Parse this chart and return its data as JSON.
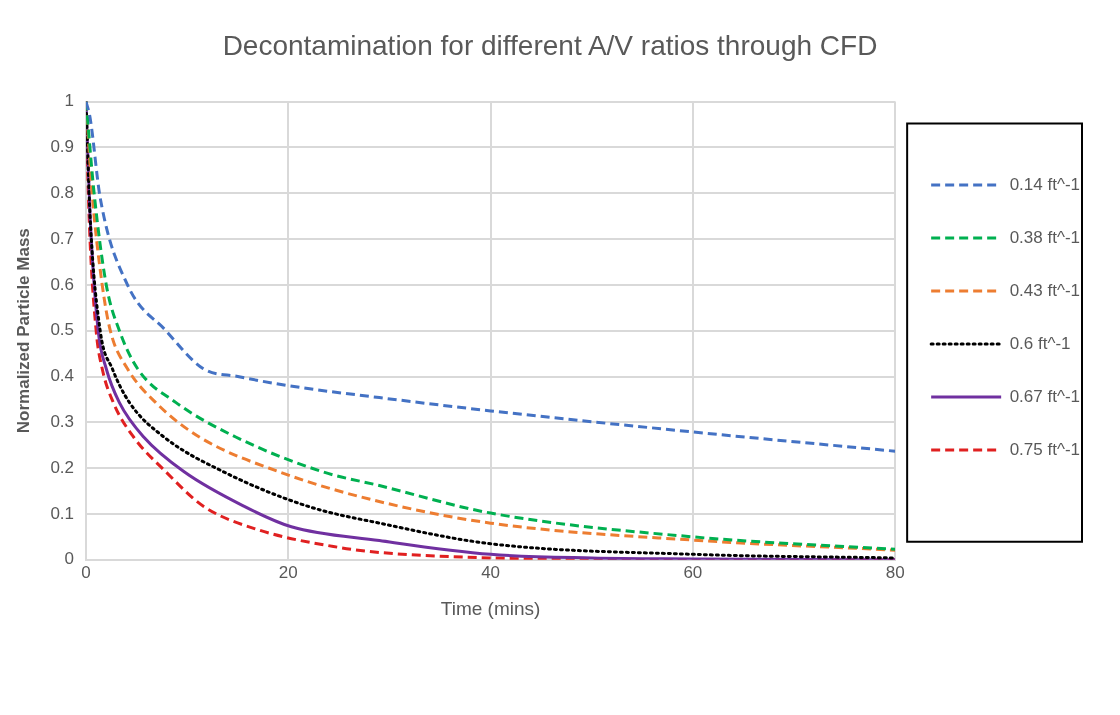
{
  "chart_data": {
    "type": "line",
    "title": "Decontamination for different A/V ratios through CFD",
    "xlabel": "Time (mins)",
    "ylabel": "Normalized Particle Mass",
    "xlim": [
      0,
      80
    ],
    "xticks": [
      0,
      20,
      40,
      60,
      80
    ],
    "ylim": [
      0,
      1
    ],
    "yticks": [
      0,
      0.1,
      0.2,
      0.3,
      0.4,
      0.5,
      0.6,
      0.7,
      0.8,
      0.9,
      1
    ],
    "grid": true,
    "legend": "right",
    "marker": "none",
    "series": [
      {
        "name": "0.14 ft^-1",
        "color": "#4472c4",
        "line_style": "dashed",
        "x": [
          0,
          0.4,
          1.4,
          4.1,
          7.9,
          11.6,
          15,
          20,
          29,
          40,
          60,
          80
        ],
        "values": [
          1,
          0.965,
          0.79,
          0.6,
          0.5,
          0.417,
          0.4,
          0.38,
          0.354,
          0.325,
          0.279,
          0.237
        ]
      },
      {
        "name": "0.38 ft^-1",
        "color": "#00b050",
        "line_style": "dashed",
        "x": [
          0,
          0.8,
          2,
          3.3,
          5.1,
          8.9,
          14.8,
          23.4,
          29,
          40,
          60,
          80
        ],
        "values": [
          1,
          0.8,
          0.6,
          0.5,
          0.417,
          0.343,
          0.268,
          0.192,
          0.162,
          0.102,
          0.05,
          0.023
        ]
      },
      {
        "name": "0.43 ft^-1",
        "color": "#ed7d31",
        "line_style": "dashed",
        "x": [
          0,
          0.6,
          1.6,
          2.4,
          4.1,
          6.9,
          11.2,
          19.1,
          28.1,
          40,
          60,
          80
        ],
        "values": [
          1,
          0.8,
          0.6,
          0.5,
          0.417,
          0.343,
          0.268,
          0.192,
          0.132,
          0.08,
          0.043,
          0.021
        ]
      },
      {
        "name": "0.6 ft^-1",
        "color": "#000000",
        "line_style": "dotted",
        "x": [
          0,
          0.4,
          1.4,
          2.6,
          4.3,
          7.7,
          13.6,
          21.9,
          29,
          40,
          60,
          80
        ],
        "values": [
          1,
          0.75,
          0.5,
          0.417,
          0.343,
          0.268,
          0.192,
          0.117,
          0.08,
          0.035,
          0.012,
          0.004
        ]
      },
      {
        "name": "0.67 ft^-1",
        "color": "#7030a0",
        "line_style": "solid",
        "x": [
          0,
          0.4,
          1.2,
          2,
          3.3,
          5.7,
          9.7,
          15.6,
          20.3,
          29,
          40,
          50,
          60,
          80
        ],
        "values": [
          1,
          0.75,
          0.5,
          0.417,
          0.343,
          0.268,
          0.192,
          0.117,
          0.072,
          0.042,
          0.012,
          0.004,
          0.002,
          0
        ]
      },
      {
        "name": "0.75 ft^-1",
        "color": "#e02020",
        "line_style": "dashed",
        "x": [
          0,
          0.3,
          1,
          1.6,
          2.7,
          4.7,
          7.9,
          11.6,
          17.1,
          25,
          29,
          40,
          50,
          80
        ],
        "values": [
          1,
          0.75,
          0.5,
          0.417,
          0.343,
          0.268,
          0.192,
          0.117,
          0.065,
          0.027,
          0.016,
          0.004,
          0.001,
          0
        ]
      }
    ]
  }
}
